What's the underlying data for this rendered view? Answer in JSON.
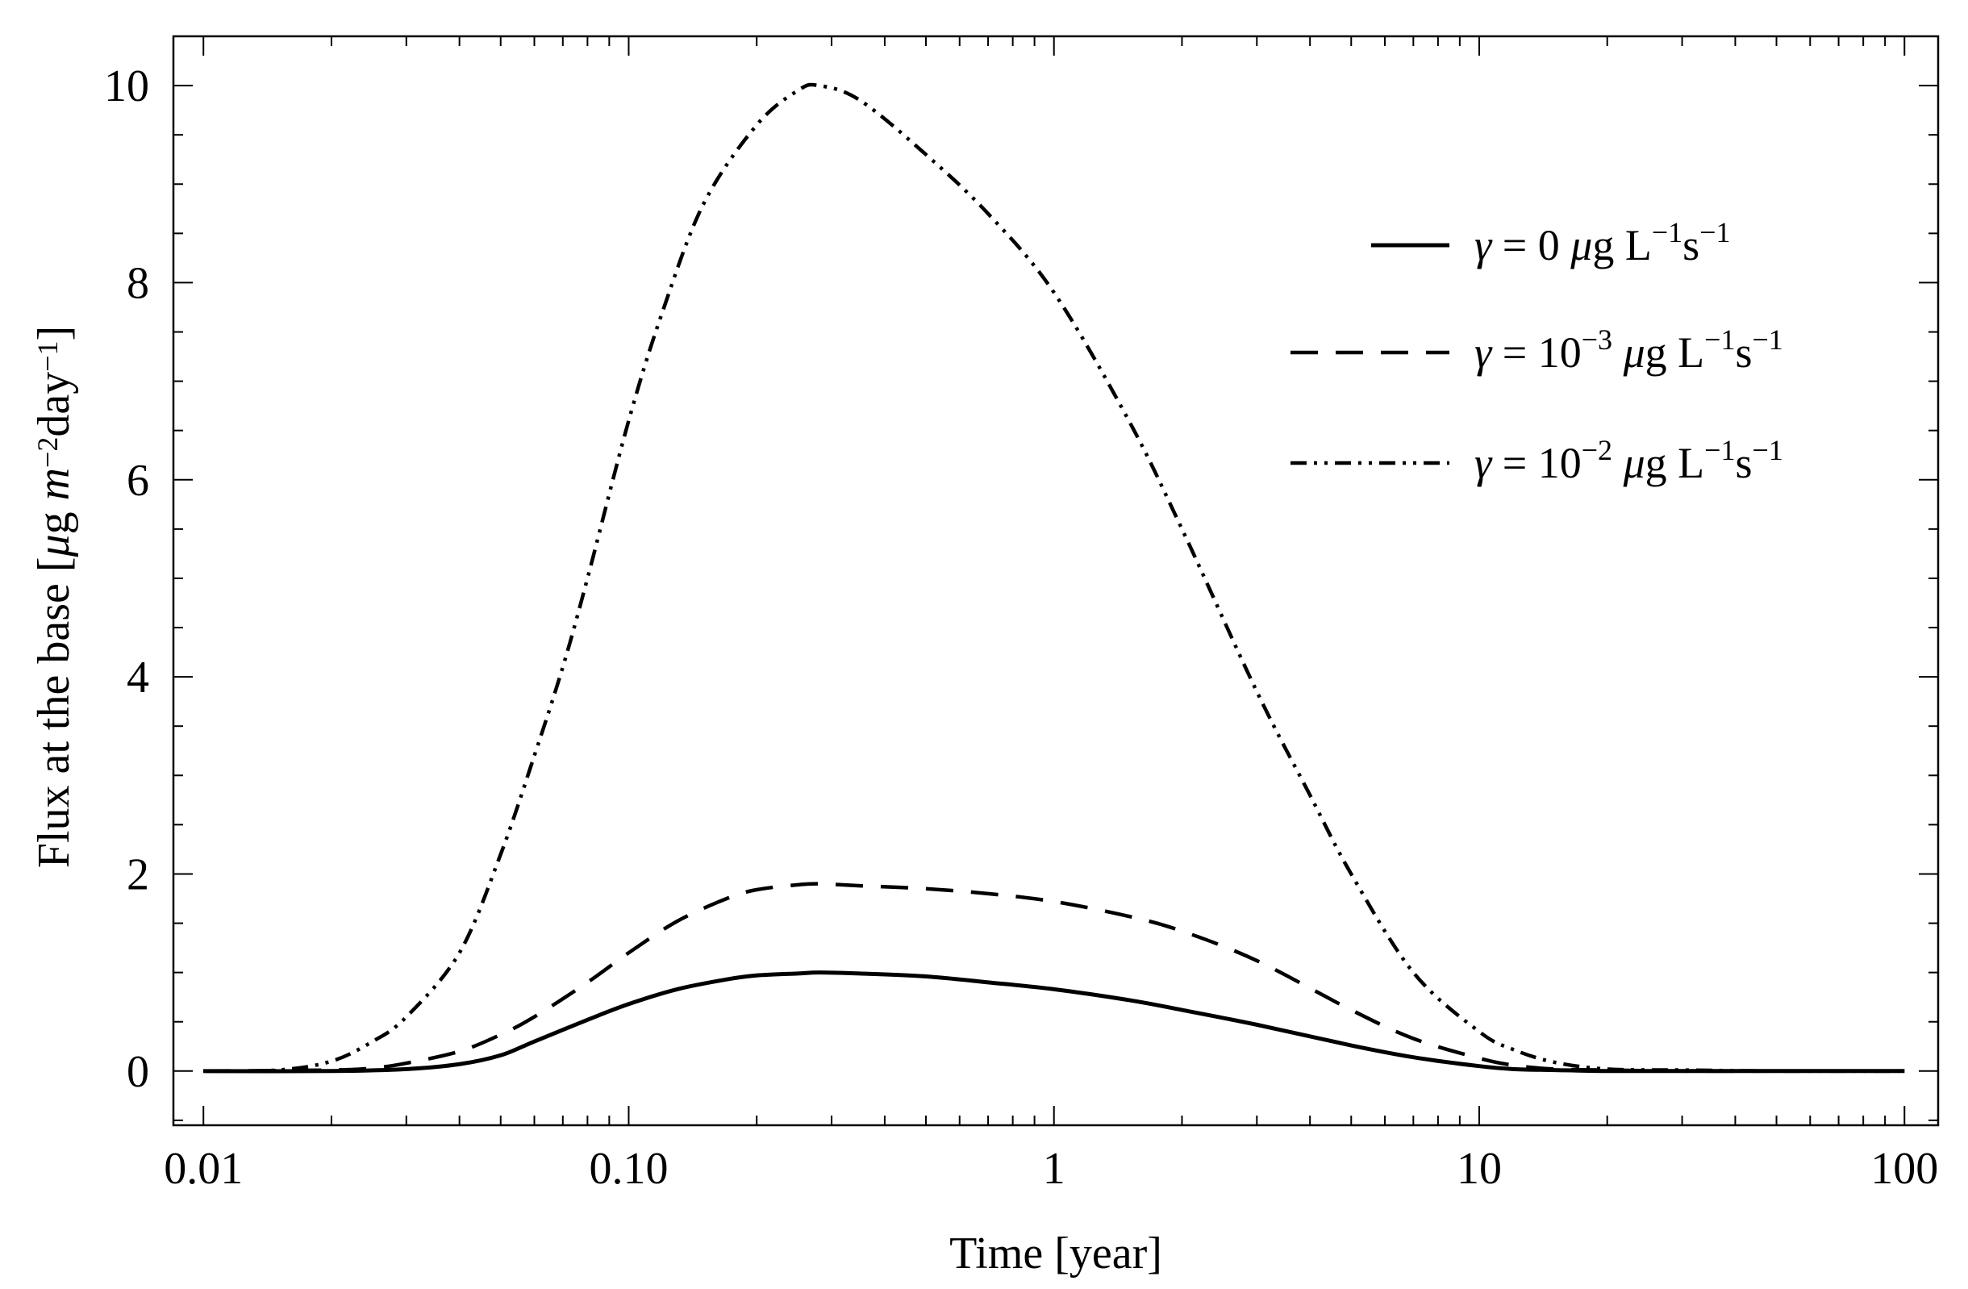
{
  "chart_data": {
    "type": "line",
    "xscale": "log",
    "xlabel": "Time [year]",
    "ylabel_parts": [
      "Flux at the base [",
      "μ",
      "g ",
      "m",
      "−2",
      "day",
      "−1",
      "]"
    ],
    "xlim": [
      0.0085,
      120
    ],
    "ylim": [
      -0.55,
      10.5
    ],
    "x_ticks": [
      {
        "value": 0.01,
        "label": "0.01"
      },
      {
        "value": 0.1,
        "label": "0.10"
      },
      {
        "value": 1,
        "label": "1"
      },
      {
        "value": 10,
        "label": "10"
      },
      {
        "value": 100,
        "label": "100"
      }
    ],
    "y_ticks": [
      {
        "value": 0,
        "label": "0"
      },
      {
        "value": 2,
        "label": "2"
      },
      {
        "value": 4,
        "label": "4"
      },
      {
        "value": 6,
        "label": "6"
      },
      {
        "value": 8,
        "label": "8"
      },
      {
        "value": 10,
        "label": "10"
      }
    ],
    "series": [
      {
        "name": "γ = 0 μg L⁻¹s⁻¹",
        "legend_parts": [
          "γ",
          " = 0 ",
          "μ",
          "g L",
          "−1",
          "s",
          "−1"
        ],
        "style": "solid",
        "x": [
          0.01,
          0.02,
          0.03,
          0.04,
          0.05,
          0.06,
          0.08,
          0.1,
          0.13,
          0.17,
          0.2,
          0.25,
          0.28,
          0.35,
          0.5,
          0.7,
          1,
          1.5,
          2,
          3,
          5,
          7,
          10,
          12,
          15,
          20,
          30,
          50,
          100
        ],
        "values": [
          0,
          0,
          0.02,
          0.07,
          0.16,
          0.3,
          0.52,
          0.68,
          0.83,
          0.93,
          0.97,
          0.99,
          1.0,
          0.99,
          0.96,
          0.9,
          0.83,
          0.72,
          0.62,
          0.47,
          0.26,
          0.14,
          0.05,
          0.02,
          0.01,
          0,
          0,
          0,
          0
        ]
      },
      {
        "name": "γ = 10⁻³ μg L⁻¹s⁻¹",
        "legend_parts": [
          "γ",
          " = 10",
          "−3",
          " ",
          "μ",
          "g L",
          "−1",
          "s",
          "−1"
        ],
        "style": "dashed",
        "x": [
          0.01,
          0.02,
          0.025,
          0.03,
          0.04,
          0.05,
          0.06,
          0.08,
          0.1,
          0.13,
          0.17,
          0.2,
          0.25,
          0.28,
          0.35,
          0.5,
          0.7,
          1,
          1.5,
          2,
          3,
          5,
          7,
          10,
          12,
          15,
          20,
          30,
          50,
          100
        ],
        "values": [
          0,
          0.01,
          0.03,
          0.08,
          0.2,
          0.37,
          0.55,
          0.9,
          1.2,
          1.52,
          1.75,
          1.84,
          1.89,
          1.9,
          1.88,
          1.85,
          1.8,
          1.72,
          1.57,
          1.42,
          1.12,
          0.62,
          0.33,
          0.13,
          0.06,
          0.02,
          0.01,
          0,
          0,
          0
        ]
      },
      {
        "name": "γ = 10⁻² μg L⁻¹s⁻¹",
        "legend_parts": [
          "γ",
          " = 10",
          "−2",
          " ",
          "μ",
          "g L",
          "−1",
          "s",
          "−1"
        ],
        "style": "dashdot",
        "x": [
          0.01,
          0.015,
          0.02,
          0.025,
          0.03,
          0.04,
          0.05,
          0.06,
          0.07,
          0.08,
          0.1,
          0.12,
          0.15,
          0.2,
          0.25,
          0.28,
          0.35,
          0.5,
          0.7,
          1,
          1.5,
          2,
          3,
          4,
          5,
          7,
          10,
          12,
          15,
          20,
          30,
          50,
          100
        ],
        "values": [
          0,
          0.01,
          0.1,
          0.3,
          0.55,
          1.2,
          2.2,
          3.2,
          4.1,
          5.0,
          6.6,
          7.7,
          8.8,
          9.6,
          9.95,
          10.0,
          9.85,
          9.3,
          8.7,
          7.9,
          6.6,
          5.5,
          3.85,
          2.8,
          2.0,
          1.0,
          0.4,
          0.22,
          0.09,
          0.02,
          0.01,
          0,
          0
        ]
      }
    ]
  }
}
